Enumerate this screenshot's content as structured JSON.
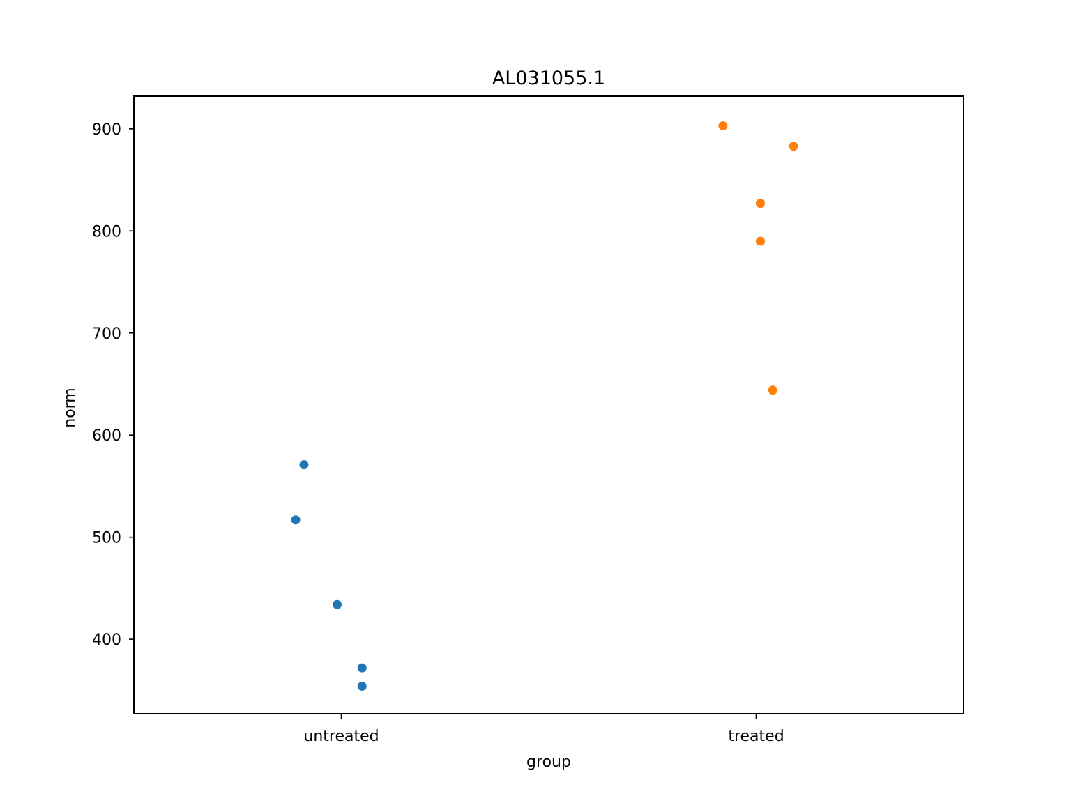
{
  "chart_data": {
    "type": "scatter",
    "title": "AL031055.1",
    "xlabel": "group",
    "ylabel": "norm",
    "categories": [
      "untreated",
      "treated"
    ],
    "yticks": [
      400,
      500,
      600,
      700,
      800,
      900
    ],
    "ylim": [
      327,
      932
    ],
    "grid": false,
    "series": [
      {
        "category": "untreated",
        "color": "#1f77b4",
        "points": [
          {
            "jitter": -0.09,
            "y": 571
          },
          {
            "jitter": -0.11,
            "y": 517
          },
          {
            "jitter": -0.01,
            "y": 434
          },
          {
            "jitter": 0.05,
            "y": 372
          },
          {
            "jitter": 0.05,
            "y": 354
          }
        ]
      },
      {
        "category": "treated",
        "color": "#ff7f0e",
        "points": [
          {
            "jitter": -0.08,
            "y": 903
          },
          {
            "jitter": 0.09,
            "y": 883
          },
          {
            "jitter": 0.01,
            "y": 827
          },
          {
            "jitter": 0.01,
            "y": 790
          },
          {
            "jitter": 0.04,
            "y": 644
          }
        ]
      }
    ]
  }
}
